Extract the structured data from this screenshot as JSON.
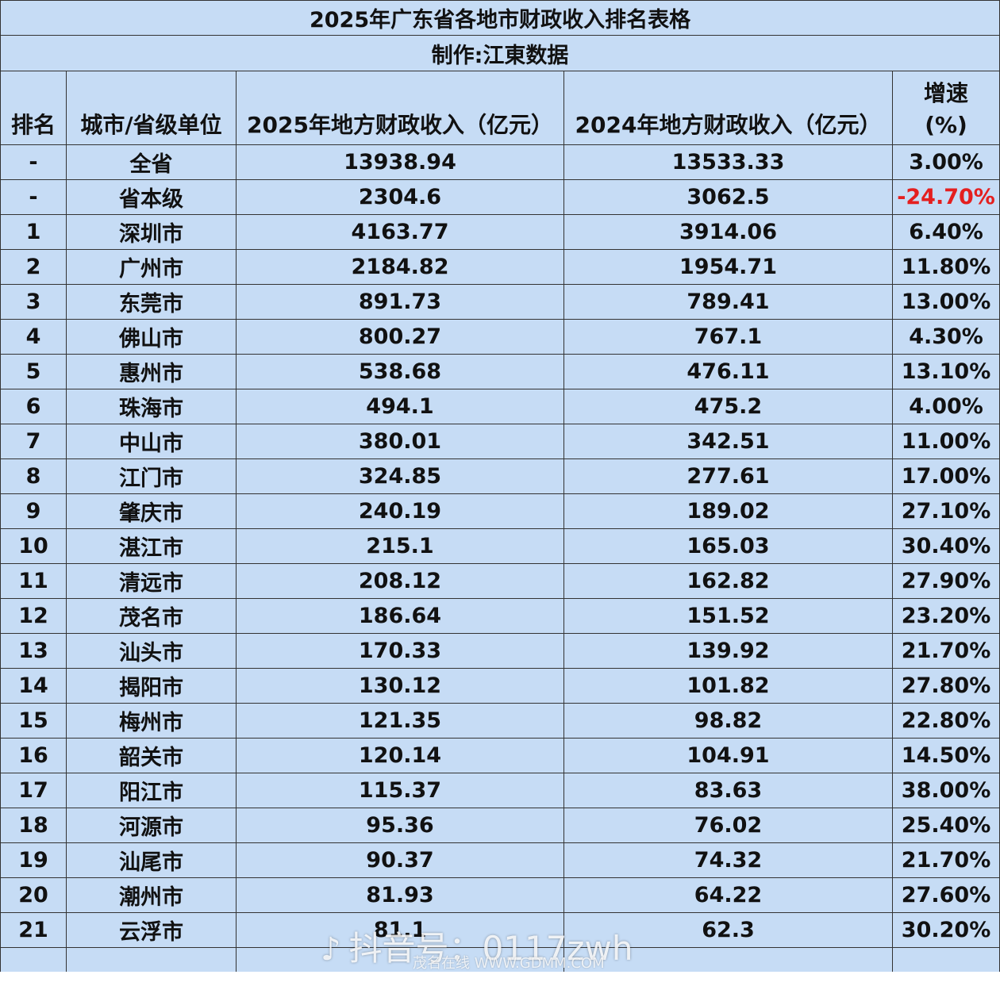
{
  "title": "2025年广东省各地市财政收入排名表格",
  "maker": "制作:江東数据",
  "headers": {
    "rank": "排名",
    "city": "城市/省级单位",
    "rev2025": "2025年地方财政收入（亿元）",
    "rev2024": "2024年地方财政收入（亿元）",
    "growth_line1": "增速",
    "growth_line2": "(%)"
  },
  "colors": {
    "table_bg": "#c6dcf5",
    "negative": "#e41f1f"
  },
  "rows": [
    {
      "rank": "-",
      "city": "全省",
      "rev2025": "13938.94",
      "rev2024": "13533.33",
      "growth": "3.00%"
    },
    {
      "rank": "-",
      "city": "省本级",
      "rev2025": "2304.6",
      "rev2024": "3062.5",
      "growth": "-24.70%"
    },
    {
      "rank": "1",
      "city": "深圳市",
      "rev2025": "4163.77",
      "rev2024": "3914.06",
      "growth": "6.40%"
    },
    {
      "rank": "2",
      "city": "广州市",
      "rev2025": "2184.82",
      "rev2024": "1954.71",
      "growth": "11.80%"
    },
    {
      "rank": "3",
      "city": "东莞市",
      "rev2025": "891.73",
      "rev2024": "789.41",
      "growth": "13.00%"
    },
    {
      "rank": "4",
      "city": "佛山市",
      "rev2025": "800.27",
      "rev2024": "767.1",
      "growth": "4.30%"
    },
    {
      "rank": "5",
      "city": "惠州市",
      "rev2025": "538.68",
      "rev2024": "476.11",
      "growth": "13.10%"
    },
    {
      "rank": "6",
      "city": "珠海市",
      "rev2025": "494.1",
      "rev2024": "475.2",
      "growth": "4.00%"
    },
    {
      "rank": "7",
      "city": "中山市",
      "rev2025": "380.01",
      "rev2024": "342.51",
      "growth": "11.00%"
    },
    {
      "rank": "8",
      "city": "江门市",
      "rev2025": "324.85",
      "rev2024": "277.61",
      "growth": "17.00%"
    },
    {
      "rank": "9",
      "city": "肇庆市",
      "rev2025": "240.19",
      "rev2024": "189.02",
      "growth": "27.10%"
    },
    {
      "rank": "10",
      "city": "湛江市",
      "rev2025": "215.1",
      "rev2024": "165.03",
      "growth": "30.40%"
    },
    {
      "rank": "11",
      "city": "清远市",
      "rev2025": "208.12",
      "rev2024": "162.82",
      "growth": "27.90%"
    },
    {
      "rank": "12",
      "city": "茂名市",
      "rev2025": "186.64",
      "rev2024": "151.52",
      "growth": "23.20%"
    },
    {
      "rank": "13",
      "city": "汕头市",
      "rev2025": "170.33",
      "rev2024": "139.92",
      "growth": "21.70%"
    },
    {
      "rank": "14",
      "city": "揭阳市",
      "rev2025": "130.12",
      "rev2024": "101.82",
      "growth": "27.80%"
    },
    {
      "rank": "15",
      "city": "梅州市",
      "rev2025": "121.35",
      "rev2024": "98.82",
      "growth": "22.80%"
    },
    {
      "rank": "16",
      "city": "韶关市",
      "rev2025": "120.14",
      "rev2024": "104.91",
      "growth": "14.50%"
    },
    {
      "rank": "17",
      "city": "阳江市",
      "rev2025": "115.37",
      "rev2024": "83.63",
      "growth": "38.00%"
    },
    {
      "rank": "18",
      "city": "河源市",
      "rev2025": "95.36",
      "rev2024": "76.02",
      "growth": "25.40%"
    },
    {
      "rank": "19",
      "city": "汕尾市",
      "rev2025": "90.37",
      "rev2024": "74.32",
      "growth": "21.70%"
    },
    {
      "rank": "20",
      "city": "潮州市",
      "rev2025": "81.93",
      "rev2024": "64.22",
      "growth": "27.60%"
    },
    {
      "rank": "21",
      "city": "云浮市",
      "rev2025": "81.1",
      "rev2024": "62.3",
      "growth": "30.20%"
    }
  ],
  "watermark": {
    "icon": "tiktok-note-icon",
    "text": "抖音号：0117zwh",
    "sub": "茂名在线 WWW.GDMM.COM"
  }
}
